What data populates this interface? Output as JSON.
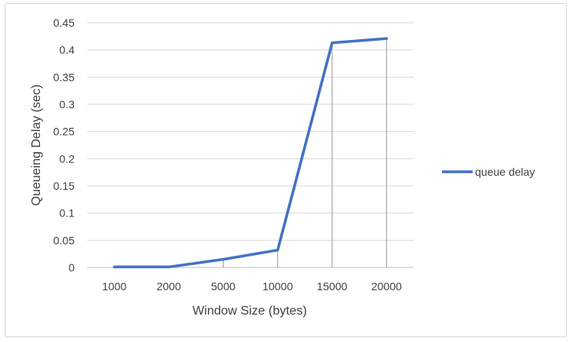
{
  "chart_data": {
    "type": "line",
    "title": "",
    "xlabel": "Window Size (bytes)",
    "ylabel": "Queueing Delay (sec)",
    "categories": [
      "1000",
      "2000",
      "5000",
      "10000",
      "15000",
      "20000"
    ],
    "series": [
      {
        "name": "queue delay",
        "values": [
          0.001,
          0.001,
          0.015,
          0.032,
          0.413,
          0.421
        ],
        "color": "#4472C4"
      }
    ],
    "ylim": [
      0,
      0.45
    ],
    "yticks": [
      "0",
      "0.05",
      "0.1",
      "0.15",
      "0.2",
      "0.25",
      "0.3",
      "0.35",
      "0.4",
      "0.45"
    ],
    "grid": true,
    "drop_lines": true,
    "legend_position": "right"
  }
}
